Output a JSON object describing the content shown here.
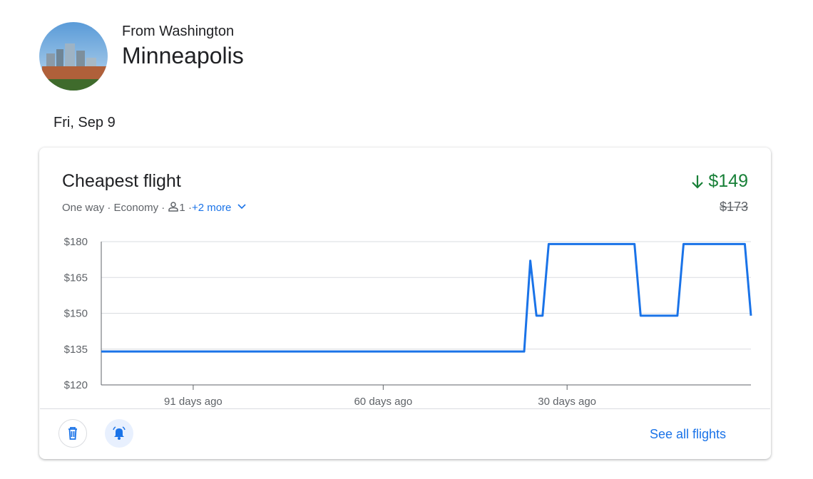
{
  "header": {
    "subtitle": "From Washington",
    "title": "Minneapolis"
  },
  "date": "Fri, Sep 9",
  "card": {
    "title": "Cheapest flight",
    "trip": "One way",
    "separator": "·",
    "cabin": "Economy",
    "passengers": "1",
    "more": "+2 more",
    "price": "$149",
    "old_price": "$173",
    "action": "See all flights"
  },
  "chart_data": {
    "type": "line",
    "color": "#1a73e8",
    "grid": true,
    "x": [
      106,
      37,
      36,
      35,
      34,
      33,
      19,
      18,
      12,
      11,
      1,
      0
    ],
    "values": [
      134,
      134,
      172,
      149,
      149,
      179,
      179,
      149,
      149,
      179,
      179,
      149
    ],
    "xlim": [
      106,
      0
    ],
    "xticks": [
      {
        "value": 91,
        "label": "91 days ago"
      },
      {
        "value": 60,
        "label": "60 days ago"
      },
      {
        "value": 30,
        "label": "30 days ago"
      }
    ],
    "ylim": [
      120,
      180
    ],
    "yticks": [
      {
        "value": 120,
        "label": "$120"
      },
      {
        "value": 135,
        "label": "$135"
      },
      {
        "value": 150,
        "label": "$150"
      },
      {
        "value": 165,
        "label": "$165"
      },
      {
        "value": 180,
        "label": "$180"
      }
    ]
  }
}
